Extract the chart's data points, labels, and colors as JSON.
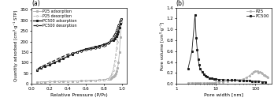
{
  "panel_a": {
    "title": "(a)",
    "xlabel": "Relative Pressure (P/P₀)",
    "ylabel": "Quantity adsorbed [cm³·g⁻¹ STP]",
    "ylim": [
      0,
      360
    ],
    "xlim": [
      0.0,
      1.05
    ],
    "yticks": [
      0,
      50,
      100,
      150,
      200,
      250,
      300,
      350
    ],
    "xticks": [
      0.0,
      0.2,
      0.4,
      0.6,
      0.8,
      1.0
    ],
    "P25_ads_x": [
      0.06,
      0.1,
      0.15,
      0.2,
      0.25,
      0.3,
      0.35,
      0.4,
      0.45,
      0.5,
      0.55,
      0.6,
      0.65,
      0.7,
      0.75,
      0.8,
      0.85,
      0.87,
      0.88,
      0.89,
      0.9,
      0.91,
      0.92,
      0.93,
      0.94,
      0.95,
      0.96,
      0.97,
      0.98,
      0.99
    ],
    "P25_ads_y": [
      8,
      9,
      10,
      11,
      11.5,
      12,
      12.5,
      13,
      13.5,
      14,
      14.5,
      15,
      16,
      17,
      18,
      20,
      23,
      25,
      27,
      30,
      33,
      37,
      42,
      50,
      60,
      75,
      100,
      150,
      220,
      290
    ],
    "P25_des_x": [
      0.99,
      0.98,
      0.97,
      0.96,
      0.95,
      0.94,
      0.93,
      0.92,
      0.91,
      0.9,
      0.89,
      0.88,
      0.87,
      0.86,
      0.85,
      0.83,
      0.8,
      0.75,
      0.7,
      0.6,
      0.5,
      0.4,
      0.3,
      0.2,
      0.1
    ],
    "P25_des_y": [
      290,
      285,
      270,
      240,
      200,
      170,
      140,
      110,
      85,
      65,
      50,
      40,
      33,
      28,
      25,
      23,
      20,
      18,
      17,
      15,
      14,
      13,
      12,
      11,
      9
    ],
    "PC500_ads_x": [
      0.06,
      0.1,
      0.15,
      0.2,
      0.25,
      0.3,
      0.35,
      0.4,
      0.45,
      0.5,
      0.55,
      0.6,
      0.65,
      0.7,
      0.75,
      0.8,
      0.85,
      0.9,
      0.92,
      0.94,
      0.95,
      0.96,
      0.97,
      0.98,
      0.99
    ],
    "PC500_ads_y": [
      65,
      75,
      83,
      90,
      100,
      110,
      120,
      130,
      140,
      150,
      158,
      165,
      170,
      175,
      180,
      187,
      195,
      205,
      215,
      225,
      235,
      248,
      265,
      285,
      305
    ],
    "PC500_des_x": [
      0.99,
      0.98,
      0.97,
      0.96,
      0.95,
      0.94,
      0.93,
      0.92,
      0.91,
      0.9,
      0.88,
      0.86,
      0.84,
      0.82,
      0.8,
      0.75,
      0.7,
      0.65,
      0.6,
      0.55,
      0.5,
      0.45,
      0.4,
      0.3,
      0.2,
      0.1,
      0.06
    ],
    "PC500_des_y": [
      305,
      300,
      290,
      278,
      265,
      253,
      243,
      235,
      228,
      222,
      210,
      200,
      192,
      185,
      180,
      172,
      168,
      164,
      160,
      155,
      150,
      145,
      140,
      120,
      100,
      80,
      68
    ]
  },
  "panel_b": {
    "title": "(b)",
    "xlabel": "Pore width [nm]",
    "ylabel": "Pore volume [cm³·g⁻¹]",
    "ylim": [
      0.0,
      1.4
    ],
    "xlim_log": [
      1.5,
      250
    ],
    "yticks": [
      0.0,
      0.2,
      0.4,
      0.6,
      0.8,
      1.0,
      1.2,
      1.4
    ],
    "xticks_log": [
      1,
      10,
      100
    ],
    "xticklabels_log": [
      "1",
      "10",
      "100"
    ],
    "P25_x": [
      2.0,
      2.5,
      3.0,
      3.5,
      4.0,
      5.0,
      6.0,
      7.0,
      8.0,
      9.0,
      10.0,
      12.0,
      15.0,
      20.0,
      25.0,
      30.0,
      35.0,
      40.0,
      50.0,
      60.0,
      70.0,
      80.0,
      90.0,
      100.0,
      110.0,
      120.0,
      130.0,
      140.0,
      150.0,
      160.0,
      170.0,
      180.0,
      190.0,
      200.0
    ],
    "P25_y": [
      0.02,
      0.02,
      0.02,
      0.02,
      0.02,
      0.02,
      0.02,
      0.02,
      0.02,
      0.02,
      0.03,
      0.04,
      0.04,
      0.05,
      0.06,
      0.06,
      0.07,
      0.08,
      0.09,
      0.12,
      0.15,
      0.19,
      0.22,
      0.24,
      0.23,
      0.21,
      0.22,
      0.2,
      0.19,
      0.17,
      0.16,
      0.15,
      0.14,
      0.12
    ],
    "PC500_x": [
      2.0,
      2.5,
      3.0,
      3.2,
      3.4,
      3.6,
      3.8,
      4.0,
      4.5,
      5.0,
      5.5,
      6.0,
      7.0,
      8.0,
      9.0,
      10.0,
      12.0,
      15.0,
      20.0,
      25.0,
      30.0,
      40.0,
      50.0,
      60.0,
      70.0,
      80.0,
      100.0,
      120.0,
      150.0,
      180.0
    ],
    "PC500_y": [
      0.28,
      0.6,
      1.27,
      0.85,
      0.63,
      0.45,
      0.35,
      0.28,
      0.22,
      0.18,
      0.15,
      0.13,
      0.11,
      0.1,
      0.09,
      0.09,
      0.08,
      0.08,
      0.07,
      0.07,
      0.07,
      0.06,
      0.06,
      0.06,
      0.06,
      0.05,
      0.05,
      0.05,
      0.04,
      0.04
    ]
  },
  "colors": {
    "P25": "#b0b0b0",
    "PC500": "#1a1a1a"
  }
}
